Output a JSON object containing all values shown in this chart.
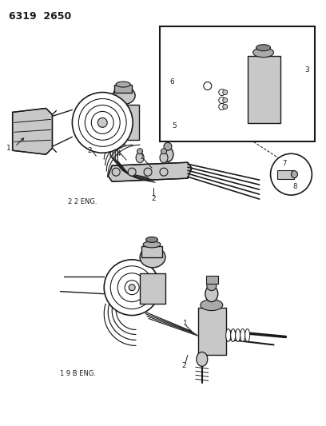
{
  "title_code": "6319  2650",
  "background_color": "#ffffff",
  "line_color": "#1a1a1a",
  "fig_width": 4.08,
  "fig_height": 5.33,
  "dpi": 100,
  "top_label": "2 2 ENG.",
  "bottom_label": "1 9 B ENG.",
  "gray_light": "#c8c8c8",
  "gray_mid": "#aaaaaa",
  "gray_dark": "#888888"
}
